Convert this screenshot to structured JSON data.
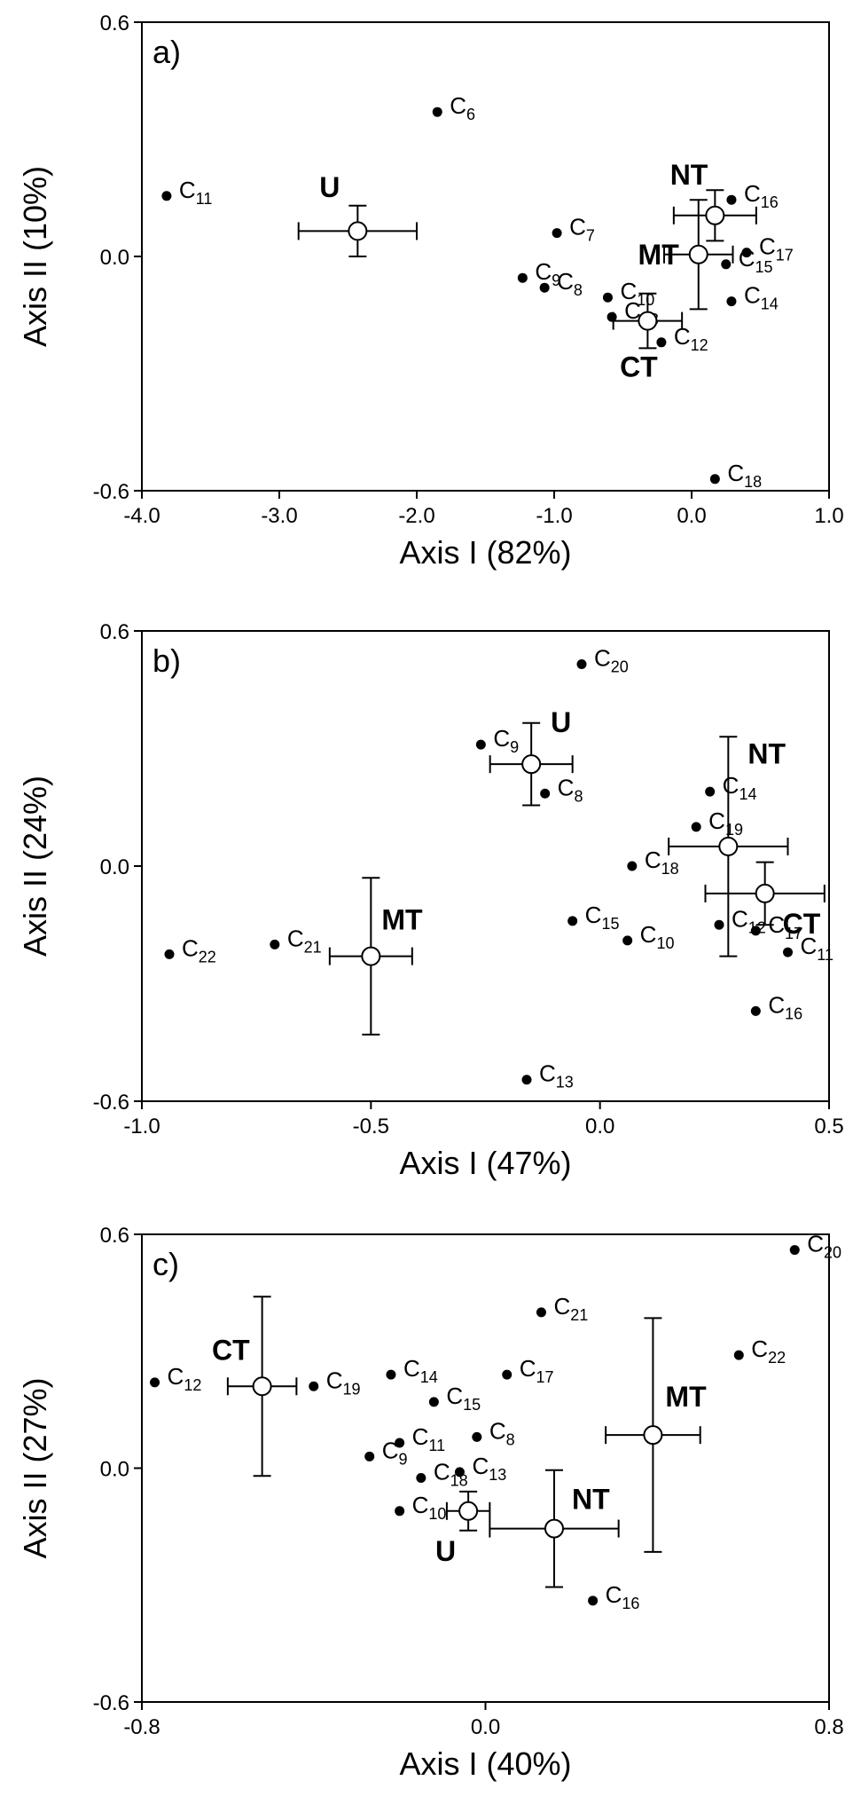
{
  "chart_data": [
    {
      "type": "scatter",
      "panel_label": "a)",
      "xlabel": "Axis I (82%)",
      "ylabel": "Axis II (10%)",
      "xlim": [
        -4.0,
        1.0
      ],
      "ylim": [
        -0.6,
        0.6
      ],
      "xticks": [
        "-4.0",
        "-3.0",
        "-2.0",
        "-1.0",
        "0.0",
        "1.0"
      ],
      "yticks": [
        "-0.6",
        "0.0",
        "0.6"
      ],
      "points": [
        {
          "label": "C",
          "sub": "6",
          "x": -1.85,
          "y": 0.37
        },
        {
          "label": "C",
          "sub": "11",
          "x": -3.82,
          "y": 0.155
        },
        {
          "label": "C",
          "sub": "7",
          "x": -0.98,
          "y": 0.06
        },
        {
          "label": "C",
          "sub": "9",
          "x": -1.23,
          "y": -0.055
        },
        {
          "label": "C",
          "sub": "8",
          "x": -1.07,
          "y": -0.08
        },
        {
          "label": "C",
          "sub": "10",
          "x": -0.61,
          "y": -0.105
        },
        {
          "label": "C",
          "sub": "13",
          "x": -0.58,
          "y": -0.155
        },
        {
          "label": "C",
          "sub": "12",
          "x": -0.22,
          "y": -0.22
        },
        {
          "label": "C",
          "sub": "14",
          "x": 0.29,
          "y": -0.115
        },
        {
          "label": "C",
          "sub": "15",
          "x": 0.25,
          "y": -0.02
        },
        {
          "label": "C",
          "sub": "16",
          "x": 0.29,
          "y": 0.145
        },
        {
          "label": "C",
          "sub": "17",
          "x": 0.4,
          "y": 0.01
        },
        {
          "label": "C",
          "sub": "18",
          "x": 0.17,
          "y": -0.57
        }
      ],
      "treatments": [
        {
          "label": "U",
          "x": -2.43,
          "y": 0.065,
          "xerr": 0.43,
          "yerr": 0.065
        },
        {
          "label": "NT",
          "x": 0.17,
          "y": 0.105,
          "xerr": 0.3,
          "yerr": 0.065
        },
        {
          "label": "MT",
          "x": 0.05,
          "y": 0.005,
          "xerr": 0.25,
          "yerr": 0.14
        },
        {
          "label": "CT",
          "x": -0.32,
          "y": -0.165,
          "xerr": 0.25,
          "yerr": 0.07
        }
      ]
    },
    {
      "type": "scatter",
      "panel_label": "b)",
      "xlabel": "Axis I (47%)",
      "ylabel": "Axis II (24%)",
      "xlim": [
        -1.0,
        0.5
      ],
      "ylim": [
        -0.6,
        0.6
      ],
      "xticks": [
        "-1.0",
        "-0.5",
        "0.0",
        "0.5"
      ],
      "yticks": [
        "-0.6",
        "0.0",
        "0.6"
      ],
      "points": [
        {
          "label": "C",
          "sub": "20",
          "x": -0.04,
          "y": 0.515
        },
        {
          "label": "C",
          "sub": "9",
          "x": -0.26,
          "y": 0.31
        },
        {
          "label": "C",
          "sub": "8",
          "x": -0.12,
          "y": 0.185
        },
        {
          "label": "C",
          "sub": "14",
          "x": 0.24,
          "y": 0.19
        },
        {
          "label": "C",
          "sub": "19",
          "x": 0.21,
          "y": 0.1
        },
        {
          "label": "C",
          "sub": "18",
          "x": 0.07,
          "y": 0.0
        },
        {
          "label": "C",
          "sub": "15",
          "x": -0.06,
          "y": -0.14
        },
        {
          "label": "C",
          "sub": "10",
          "x": 0.06,
          "y": -0.19
        },
        {
          "label": "C",
          "sub": "12",
          "x": 0.26,
          "y": -0.15
        },
        {
          "label": "C",
          "sub": "17",
          "x": 0.34,
          "y": -0.165
        },
        {
          "label": "C",
          "sub": "11",
          "x": 0.41,
          "y": -0.22
        },
        {
          "label": "C",
          "sub": "16",
          "x": 0.34,
          "y": -0.37
        },
        {
          "label": "C",
          "sub": "22",
          "x": -0.94,
          "y": -0.225
        },
        {
          "label": "C",
          "sub": "21",
          "x": -0.71,
          "y": -0.2
        },
        {
          "label": "C",
          "sub": "13",
          "x": -0.16,
          "y": -0.545
        }
      ],
      "treatments": [
        {
          "label": "U",
          "x": -0.15,
          "y": 0.26,
          "xerr": 0.09,
          "yerr": 0.105
        },
        {
          "label": "NT",
          "x": 0.28,
          "y": 0.05,
          "xerr": 0.13,
          "yerr": 0.28
        },
        {
          "label": "CT",
          "x": 0.36,
          "y": -0.07,
          "xerr": 0.13,
          "yerr": 0.08
        },
        {
          "label": "MT",
          "x": -0.5,
          "y": -0.23,
          "xerr": 0.09,
          "yerr": 0.2
        }
      ]
    },
    {
      "type": "scatter",
      "panel_label": "c)",
      "xlabel": "Axis I (40%)",
      "ylabel": "Axis II (27%)",
      "xlim": [
        -0.8,
        0.8
      ],
      "ylim": [
        -0.6,
        0.6
      ],
      "xticks": [
        "-0.8",
        "0.0",
        "0.8"
      ],
      "yticks": [
        "-0.6",
        "0.0",
        "0.6"
      ],
      "points": [
        {
          "label": "C",
          "sub": "20",
          "x": 0.72,
          "y": 0.56
        },
        {
          "label": "C",
          "sub": "21",
          "x": 0.13,
          "y": 0.4
        },
        {
          "label": "C",
          "sub": "22",
          "x": 0.59,
          "y": 0.29
        },
        {
          "label": "C",
          "sub": "12",
          "x": -0.77,
          "y": 0.22
        },
        {
          "label": "C",
          "sub": "19",
          "x": -0.4,
          "y": 0.21
        },
        {
          "label": "C",
          "sub": "14",
          "x": -0.22,
          "y": 0.24
        },
        {
          "label": "C",
          "sub": "17",
          "x": 0.05,
          "y": 0.24
        },
        {
          "label": "C",
          "sub": "15",
          "x": -0.12,
          "y": 0.17
        },
        {
          "label": "C",
          "sub": "8",
          "x": -0.02,
          "y": 0.08
        },
        {
          "label": "C",
          "sub": "9",
          "x": -0.27,
          "y": 0.03
        },
        {
          "label": "C",
          "sub": "11",
          "x": -0.2,
          "y": 0.065
        },
        {
          "label": "C",
          "sub": "18",
          "x": -0.15,
          "y": -0.025
        },
        {
          "label": "C",
          "sub": "13",
          "x": -0.06,
          "y": -0.01
        },
        {
          "label": "C",
          "sub": "10",
          "x": -0.2,
          "y": -0.11
        },
        {
          "label": "C",
          "sub": "16",
          "x": 0.25,
          "y": -0.34
        }
      ],
      "treatments": [
        {
          "label": "CT",
          "x": -0.52,
          "y": 0.21,
          "xerr": 0.08,
          "yerr": 0.23
        },
        {
          "label": "MT",
          "x": 0.39,
          "y": 0.085,
          "xerr": 0.11,
          "yerr": 0.3
        },
        {
          "label": "U",
          "x": -0.04,
          "y": -0.11,
          "xerr": 0.05,
          "yerr": 0.05
        },
        {
          "label": "NT",
          "x": 0.16,
          "y": -0.155,
          "xerr": 0.15,
          "yerr": 0.15
        }
      ]
    }
  ]
}
